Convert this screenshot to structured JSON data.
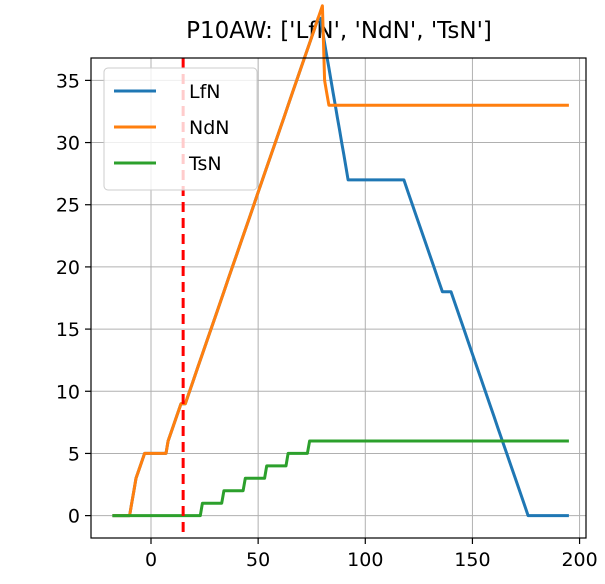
{
  "chart_data": {
    "type": "line",
    "title": "P10AW: ['LfN', 'NdN', 'TsN']",
    "xlabel": "",
    "ylabel": "",
    "xlim": [
      -28,
      203
    ],
    "ylim": [
      -1.8,
      36.8
    ],
    "xticks": [
      0,
      50,
      100,
      150,
      200
    ],
    "yticks": [
      0,
      5,
      10,
      15,
      20,
      25,
      30,
      35
    ],
    "grid": true,
    "legend_position": "top-left",
    "vline": {
      "x": 15,
      "color": "#ff0000",
      "style": "dashed"
    },
    "series": [
      {
        "name": "LfN",
        "color": "#1f77b4",
        "points": [
          [
            -18,
            0
          ],
          [
            -10,
            0
          ],
          [
            -9,
            1
          ],
          [
            -8,
            2
          ],
          [
            -7,
            3
          ],
          [
            -5,
            4
          ],
          [
            -3,
            5
          ],
          [
            7,
            5
          ],
          [
            8,
            6
          ],
          [
            10,
            7
          ],
          [
            12,
            8
          ],
          [
            14,
            9
          ],
          [
            16,
            9
          ],
          [
            18,
            10
          ],
          [
            20,
            11
          ],
          [
            22,
            12
          ],
          [
            24,
            13
          ],
          [
            26,
            14
          ],
          [
            28,
            15
          ],
          [
            30,
            16
          ],
          [
            32,
            17
          ],
          [
            34,
            18
          ],
          [
            36,
            19
          ],
          [
            38,
            20
          ],
          [
            40,
            21
          ],
          [
            42,
            22
          ],
          [
            44,
            23
          ],
          [
            46,
            24
          ],
          [
            48,
            25
          ],
          [
            50,
            26
          ],
          [
            52,
            27
          ],
          [
            54,
            28
          ],
          [
            56,
            29
          ],
          [
            58,
            30
          ],
          [
            60,
            31
          ],
          [
            62,
            32
          ],
          [
            64,
            33
          ],
          [
            66,
            34
          ],
          [
            68,
            35
          ],
          [
            70,
            36
          ],
          [
            72,
            37
          ],
          [
            74,
            38
          ],
          [
            76,
            39
          ],
          [
            78,
            40
          ],
          [
            79,
            40
          ],
          [
            80,
            39
          ],
          [
            81,
            38
          ],
          [
            82,
            37
          ],
          [
            83,
            36
          ],
          [
            84,
            35
          ],
          [
            85,
            34
          ],
          [
            86,
            33
          ],
          [
            87,
            32
          ],
          [
            88,
            31
          ],
          [
            89,
            30
          ],
          [
            90,
            29
          ],
          [
            91,
            28
          ],
          [
            92,
            27
          ],
          [
            118,
            27
          ],
          [
            120,
            26
          ],
          [
            122,
            25
          ],
          [
            124,
            24
          ],
          [
            126,
            23
          ],
          [
            128,
            22
          ],
          [
            130,
            21
          ],
          [
            132,
            20
          ],
          [
            134,
            19
          ],
          [
            136,
            18
          ],
          [
            140,
            18
          ],
          [
            142,
            17
          ],
          [
            144,
            16
          ],
          [
            146,
            15
          ],
          [
            148,
            14
          ],
          [
            150,
            13
          ],
          [
            152,
            12
          ],
          [
            154,
            11
          ],
          [
            156,
            10
          ],
          [
            158,
            9
          ],
          [
            160,
            8
          ],
          [
            162,
            7
          ],
          [
            164,
            6
          ],
          [
            166,
            5
          ],
          [
            168,
            4
          ],
          [
            170,
            3
          ],
          [
            172,
            2
          ],
          [
            174,
            1
          ],
          [
            176,
            0
          ],
          [
            186,
            0
          ],
          [
            195,
            0
          ]
        ]
      },
      {
        "name": "NdN",
        "color": "#ff7f0e",
        "points": [
          [
            -18,
            0
          ],
          [
            -10,
            0
          ],
          [
            -9,
            1
          ],
          [
            -8,
            2
          ],
          [
            -7,
            3
          ],
          [
            -5,
            4
          ],
          [
            -3,
            5
          ],
          [
            7,
            5
          ],
          [
            8,
            6
          ],
          [
            10,
            7
          ],
          [
            12,
            8
          ],
          [
            14,
            9
          ],
          [
            16,
            9
          ],
          [
            18,
            10
          ],
          [
            20,
            11
          ],
          [
            22,
            12
          ],
          [
            24,
            13
          ],
          [
            26,
            14
          ],
          [
            28,
            15
          ],
          [
            30,
            16
          ],
          [
            32,
            17
          ],
          [
            34,
            18
          ],
          [
            36,
            19
          ],
          [
            38,
            20
          ],
          [
            40,
            21
          ],
          [
            42,
            22
          ],
          [
            44,
            23
          ],
          [
            46,
            24
          ],
          [
            48,
            25
          ],
          [
            50,
            26
          ],
          [
            52,
            27
          ],
          [
            54,
            28
          ],
          [
            56,
            29
          ],
          [
            58,
            30
          ],
          [
            60,
            31
          ],
          [
            62,
            32
          ],
          [
            64,
            33
          ],
          [
            66,
            34
          ],
          [
            68,
            35
          ],
          [
            70,
            36
          ],
          [
            72,
            37
          ],
          [
            74,
            38
          ],
          [
            76,
            39
          ],
          [
            78,
            40
          ],
          [
            80,
            41
          ],
          [
            81,
            35
          ],
          [
            82,
            34
          ],
          [
            83,
            33
          ],
          [
            195,
            33
          ]
        ]
      },
      {
        "name": "TsN",
        "color": "#2ca02c",
        "points": [
          [
            -18,
            0
          ],
          [
            23,
            0
          ],
          [
            24,
            1
          ],
          [
            33,
            1
          ],
          [
            34,
            2
          ],
          [
            43,
            2
          ],
          [
            44,
            3
          ],
          [
            53,
            3
          ],
          [
            54,
            4
          ],
          [
            63,
            4
          ],
          [
            64,
            5
          ],
          [
            73,
            5
          ],
          [
            74,
            6
          ],
          [
            195,
            6
          ]
        ]
      }
    ]
  }
}
